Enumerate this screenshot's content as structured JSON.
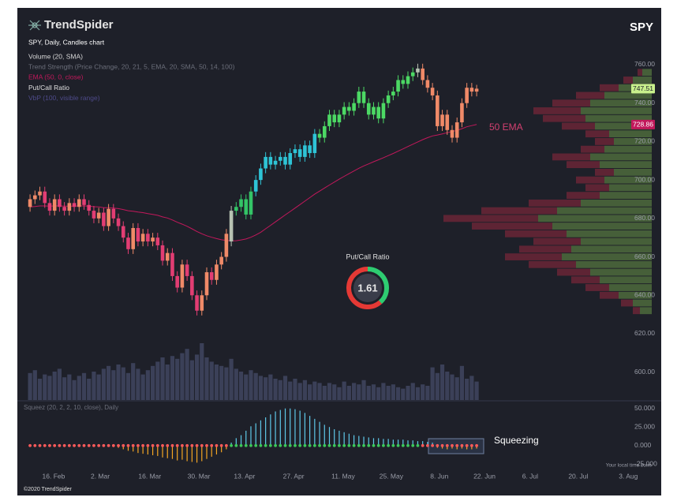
{
  "chart_data": {
    "type": "candlestick",
    "logo": "TrendSpider",
    "title": "SPY",
    "subtitle": "SPY, Daily, Candles chart",
    "indicators": [
      {
        "name": "Volume (20, SMA)",
        "color": "#d8d8d8"
      },
      {
        "name": "Trend Strength (Price Change, 20, 21, 5, EMA, 20, SMA, 50, 14, 100)",
        "color": "#6b6e7a"
      },
      {
        "name": "EMA (50, 0, close)",
        "color": "#c2185b"
      },
      {
        "name": "Put/Call Ratio",
        "color": "#e0e0e0"
      },
      {
        "name": "VbP (100, visible range)",
        "color": "#4e4a8a"
      }
    ],
    "x": [
      0,
      1,
      2,
      3,
      4,
      5,
      6,
      7,
      8,
      9,
      10,
      11,
      12,
      13,
      14,
      15,
      16,
      17,
      18,
      19,
      20,
      21,
      22,
      23,
      24,
      25,
      26,
      27,
      28,
      29,
      30,
      31,
      32,
      33,
      34,
      35,
      36,
      37,
      38,
      39,
      40,
      41,
      42,
      43,
      44,
      45,
      46,
      47,
      48,
      49,
      50,
      51,
      52,
      53,
      54,
      55,
      56,
      57,
      58,
      59,
      60,
      61,
      62,
      63,
      64,
      65,
      66,
      67,
      68,
      69,
      70,
      71,
      72,
      73,
      74,
      75,
      76,
      77,
      78,
      79,
      80,
      81,
      82,
      83,
      84,
      85,
      86,
      87,
      88,
      89,
      90,
      91
    ],
    "open": [
      686,
      690,
      692,
      694,
      688,
      684,
      690,
      686,
      684,
      688,
      686,
      690,
      687,
      684,
      680,
      683,
      676,
      685,
      680,
      676,
      670,
      664,
      675,
      668,
      672,
      668,
      670,
      666,
      658,
      662,
      650,
      644,
      656,
      650,
      640,
      632,
      640,
      652,
      648,
      656,
      660,
      668,
      684,
      686,
      690,
      682,
      694,
      700,
      706,
      712,
      708,
      710,
      712,
      708,
      714,
      716,
      712,
      718,
      714,
      724,
      722,
      728,
      734,
      730,
      734,
      738,
      736,
      740,
      746,
      740,
      734,
      738,
      732,
      740,
      744,
      746,
      752,
      750,
      754,
      756,
      758,
      752,
      748,
      744,
      728,
      734,
      726,
      722,
      730,
      740,
      748,
      746
    ],
    "high": [
      692.5,
      694.5,
      696.5,
      696.5,
      690.5,
      692.5,
      692.5,
      688.5,
      690.5,
      690.5,
      692.5,
      692.5,
      689.5,
      686.5,
      685.5,
      685.5,
      687.5,
      687.5,
      682.5,
      678.5,
      672.5,
      677.5,
      677.5,
      674.5,
      674.5,
      672.5,
      672.5,
      668.5,
      664.5,
      664.5,
      652.5,
      658.5,
      658.5,
      652.5,
      642.5,
      642.5,
      654.5,
      654.5,
      658.5,
      662.5,
      674.5,
      686.5,
      688.5,
      692.5,
      692.5,
      696.5,
      702.5,
      708.5,
      714.5,
      714.5,
      712.5,
      714.5,
      714.5,
      716.5,
      718.5,
      718.5,
      720.5,
      720.5,
      726.5,
      726.5,
      730.5,
      736.5,
      736.5,
      736.5,
      740.5,
      740.5,
      742.5,
      748.5,
      748.5,
      742.5,
      740.5,
      740.5,
      742.5,
      746.5,
      748.5,
      754.5,
      754.5,
      756.5,
      758.5,
      760.5,
      760.5,
      754.5,
      750.5,
      746.5,
      736.5,
      736.5,
      728.5,
      732.5,
      742.5,
      750.5,
      750.5,
      749.5
    ],
    "low": [
      683.5,
      687.5,
      689.5,
      685.5,
      681.5,
      681.5,
      683.5,
      681.5,
      681.5,
      683.5,
      683.5,
      684.5,
      681.5,
      677.5,
      677.5,
      673.5,
      673.5,
      677.5,
      673.5,
      667.5,
      661.5,
      661.5,
      665.5,
      665.5,
      665.5,
      665.5,
      663.5,
      655.5,
      655.5,
      647.5,
      641.5,
      641.5,
      647.5,
      637.5,
      629.5,
      629.5,
      637.5,
      645.5,
      645.5,
      653.5,
      657.5,
      665.5,
      681.5,
      683.5,
      679.5,
      679.5,
      691.5,
      697.5,
      703.5,
      705.5,
      705.5,
      707.5,
      705.5,
      705.5,
      711.5,
      709.5,
      709.5,
      711.5,
      711.5,
      719.5,
      719.5,
      725.5,
      727.5,
      727.5,
      731.5,
      733.5,
      733.5,
      737.5,
      737.5,
      731.5,
      731.5,
      729.5,
      729.5,
      737.5,
      741.5,
      743.5,
      747.5,
      747.5,
      751.5,
      753.5,
      749.5,
      745.5,
      741.5,
      725.5,
      725.5,
      723.5,
      719.5,
      719.5,
      727.5,
      737.5,
      743.5,
      743.5
    ],
    "close": [
      690,
      692,
      694,
      688,
      684,
      690,
      686,
      684,
      688,
      686,
      690,
      687,
      684,
      680,
      683,
      676,
      685,
      680,
      676,
      670,
      664,
      675,
      668,
      672,
      668,
      670,
      666,
      658,
      662,
      650,
      644,
      656,
      650,
      640,
      632,
      640,
      652,
      648,
      656,
      660,
      672,
      684,
      686,
      690,
      682,
      694,
      700,
      706,
      712,
      708,
      710,
      712,
      708,
      714,
      716,
      712,
      718,
      714,
      724,
      722,
      728,
      734,
      730,
      734,
      738,
      736,
      740,
      746,
      740,
      734,
      738,
      732,
      740,
      744,
      746,
      752,
      750,
      754,
      756,
      758,
      752,
      748,
      744,
      728,
      734,
      726,
      722,
      730,
      740,
      748,
      746,
      747.51
    ],
    "colors": [
      "#f08a68",
      "#f08a68",
      "#f08a68",
      "#e23d73",
      "#e23d73",
      "#f08a68",
      "#e23d73",
      "#e23d73",
      "#f08a68",
      "#e23d73",
      "#f08a68",
      "#e23d73",
      "#e23d73",
      "#e23d73",
      "#f08a68",
      "#e23d73",
      "#f08a68",
      "#e23d73",
      "#e23d73",
      "#e23d73",
      "#e23d73",
      "#f08a68",
      "#e23d73",
      "#f08a68",
      "#e23d73",
      "#f08a68",
      "#e23d73",
      "#e23d73",
      "#f08a68",
      "#e23d73",
      "#e23d73",
      "#f08a68",
      "#e23d73",
      "#e23d73",
      "#e23d73",
      "#f08a68",
      "#f08a68",
      "#e23d73",
      "#f08a68",
      "#f08a68",
      "#f08a68",
      "#b7c2b2",
      "#33c466",
      "#33c466",
      "#33c466",
      "#33c466",
      "#2ec4d6",
      "#2ec4d6",
      "#2ec4d6",
      "#2ec4d6",
      "#2ec4d6",
      "#2ec4d6",
      "#2ec4d6",
      "#2ec4d6",
      "#2ec4d6",
      "#2ec4d6",
      "#2ec4d6",
      "#2ec4d6",
      "#2ec4d6",
      "#4cd964",
      "#4cd964",
      "#4cd964",
      "#4cd964",
      "#4cd964",
      "#4cd964",
      "#4cd964",
      "#4cd964",
      "#4cd964",
      "#4cd964",
      "#4cd964",
      "#4cd964",
      "#4cd964",
      "#4cd964",
      "#4cd964",
      "#4cd964",
      "#4cd964",
      "#4cd964",
      "#4cd964",
      "#4cd964",
      "#b7c2b2",
      "#f08a68",
      "#f08a68",
      "#f08a68",
      "#f08a68",
      "#f08a68",
      "#f08a68",
      "#f08a68",
      "#f08a68",
      "#f08a68",
      "#f08a68",
      "#f08a68",
      "#f08a68"
    ],
    "xlim": [
      -1.3,
      127
    ],
    "xticks": [
      {
        "value": 4.8,
        "label": "16. Feb"
      },
      {
        "value": 14.3,
        "label": "2. Mar"
      },
      {
        "value": 24.4,
        "label": "16. Mar"
      },
      {
        "value": 34.4,
        "label": "30. Mar"
      },
      {
        "value": 43.7,
        "label": "13. Apr"
      },
      {
        "value": 53.7,
        "label": "27. Apr"
      },
      {
        "value": 63.8,
        "label": "11. May"
      },
      {
        "value": 73.6,
        "label": "25. May"
      },
      {
        "value": 83.4,
        "label": "8. Jun"
      },
      {
        "value": 92.6,
        "label": "22. Jun"
      },
      {
        "value": 101.9,
        "label": "6. Jul"
      },
      {
        "value": 111.7,
        "label": "20. Jul"
      },
      {
        "value": 121.9,
        "label": "3. Aug"
      }
    ],
    "ylim": [
      585.5,
      787.5
    ],
    "yticks": [
      {
        "value": 600,
        "label": "600.00"
      },
      {
        "value": 620,
        "label": "620.00"
      },
      {
        "value": 640,
        "label": "640.00"
      },
      {
        "value": 660,
        "label": "660.00"
      },
      {
        "value": 680,
        "label": "680.00"
      },
      {
        "value": 700,
        "label": "700.00"
      },
      {
        "value": 720,
        "label": "720.00"
      },
      {
        "value": 740,
        "label": "740.00"
      },
      {
        "value": 760,
        "label": "760.00"
      }
    ],
    "last_price_color": "#c8f08c",
    "ema": {
      "name": "50 EMA",
      "color": "#c2185b",
      "values": [
        686,
        686.2,
        686.5,
        686.5,
        686.4,
        686.5,
        686.5,
        686.4,
        686.4,
        686.4,
        686.5,
        686.5,
        686.4,
        686.1,
        686,
        685.6,
        685.6,
        685.4,
        685.1,
        684.6,
        684,
        683.7,
        683.3,
        683,
        682.5,
        682.1,
        681.6,
        680.8,
        680.2,
        679.2,
        678,
        677,
        675.9,
        674.6,
        673.2,
        672,
        671,
        670.2,
        669.5,
        668.9,
        668.5,
        668.3,
        668.4,
        668.8,
        669.3,
        670.2,
        671.4,
        672.8,
        674.6,
        676.4,
        678.2,
        680,
        681.8,
        683.6,
        685.4,
        687.2,
        689,
        690.8,
        692.6,
        694.2,
        695.8,
        697.4,
        698.9,
        700.4,
        701.9,
        703.3,
        704.7,
        706.1,
        707.3,
        708.4,
        709.5,
        710.5,
        711.6,
        712.7,
        713.8,
        715,
        716.2,
        717.4,
        718.6,
        719.8,
        721,
        722,
        722.9,
        723.4,
        724,
        724.6,
        725.2,
        725.8,
        726.7,
        727.7,
        728.3,
        728.86
      ]
    },
    "volume": {
      "color": "#3b4058",
      "lim": [
        0,
        100
      ],
      "values": [
        38,
        42,
        30,
        36,
        34,
        40,
        44,
        32,
        36,
        28,
        34,
        38,
        30,
        40,
        36,
        44,
        48,
        42,
        50,
        46,
        38,
        52,
        44,
        36,
        42,
        48,
        54,
        60,
        50,
        62,
        58,
        66,
        72,
        56,
        64,
        80,
        60,
        54,
        50,
        48,
        46,
        58,
        44,
        40,
        36,
        42,
        38,
        34,
        32,
        36,
        30,
        28,
        34,
        26,
        30,
        24,
        28,
        22,
        26,
        24,
        20,
        24,
        22,
        18,
        26,
        20,
        24,
        22,
        28,
        20,
        22,
        18,
        24,
        20,
        22,
        18,
        16,
        20,
        24,
        18,
        22,
        20,
        46,
        38,
        50,
        40,
        36,
        32,
        48,
        30,
        34,
        26
      ]
    },
    "volume_profile": {
      "up_color": "#4d6b3c",
      "down_color": "#6a2636",
      "lim": [
        0,
        100
      ],
      "levels": [
        632,
        636,
        640,
        644,
        648,
        652,
        656,
        660,
        664,
        668,
        672,
        676,
        680,
        684,
        688,
        692,
        696,
        700,
        704,
        708,
        712,
        716,
        720,
        724,
        728,
        732,
        736,
        740,
        744,
        748,
        752,
        756
      ],
      "up": [
        5,
        8,
        14,
        18,
        22,
        26,
        32,
        38,
        34,
        30,
        36,
        42,
        48,
        40,
        30,
        22,
        18,
        20,
        16,
        22,
        26,
        20,
        16,
        18,
        24,
        28,
        30,
        26,
        20,
        14,
        8,
        4
      ],
      "down": [
        3,
        5,
        8,
        10,
        12,
        14,
        20,
        24,
        22,
        20,
        26,
        34,
        40,
        32,
        22,
        14,
        10,
        12,
        8,
        14,
        16,
        10,
        8,
        10,
        14,
        18,
        20,
        16,
        12,
        8,
        4,
        2
      ]
    },
    "put_call": {
      "title": "Put/Call Ratio",
      "value": 1.61,
      "put_color": "#e53935",
      "call_color": "#2ecc71"
    },
    "squeeze": {
      "name": "Squeez (20, 2, 2, 10, close), Daily",
      "annotation": "Squeezing",
      "pos_color": "#5ec8e8",
      "neg_color": "#f5a623",
      "on_color": "#ff5a5a",
      "off_color": "#3cc85a",
      "ylim": [
        -30,
        55
      ],
      "yticks": [
        {
          "value": 50,
          "label": "50.000"
        },
        {
          "value": 25,
          "label": "25.000"
        },
        {
          "value": 0,
          "label": "0.000"
        },
        {
          "value": -25,
          "label": "-25.000"
        }
      ],
      "values": [
        0.5,
        0.8,
        1,
        0.6,
        0.4,
        0.6,
        0.5,
        0.3,
        0.4,
        0.2,
        0.3,
        0.4,
        0.2,
        -0.5,
        -0.8,
        -1.5,
        -1,
        -2,
        -3,
        -5,
        -7,
        -8,
        -10,
        -11,
        -12,
        -13,
        -14,
        -16,
        -17,
        -18,
        -20,
        -19,
        -21,
        -22,
        -23,
        -21,
        -18,
        -15,
        -12,
        -9,
        -5,
        4,
        10,
        14,
        20,
        26,
        30,
        34,
        38,
        42,
        46,
        48,
        50,
        50,
        49,
        47,
        44,
        40,
        36,
        32,
        28,
        25,
        22,
        20,
        18,
        16,
        14,
        13,
        12,
        11,
        10,
        10,
        9,
        9,
        8,
        8,
        8,
        7,
        7,
        6,
        6,
        5,
        4,
        -3,
        -4,
        -5,
        -4,
        -5,
        -4,
        -5,
        -5,
        -4
      ],
      "on": [
        true,
        true,
        true,
        true,
        true,
        true,
        true,
        true,
        true,
        true,
        true,
        true,
        true,
        true,
        true,
        true,
        true,
        true,
        true,
        true,
        true,
        true,
        true,
        true,
        true,
        true,
        true,
        true,
        true,
        true,
        true,
        true,
        true,
        true,
        true,
        true,
        true,
        true,
        true,
        true,
        true,
        false,
        false,
        false,
        false,
        false,
        false,
        false,
        false,
        false,
        false,
        false,
        false,
        false,
        false,
        false,
        false,
        false,
        false,
        false,
        false,
        false,
        false,
        false,
        false,
        false,
        false,
        false,
        false,
        false,
        false,
        false,
        false,
        false,
        false,
        false,
        false,
        false,
        false,
        false,
        true,
        true,
        true,
        true,
        true,
        true,
        true,
        true,
        true,
        true,
        true,
        true
      ]
    },
    "time_zone": "Your local time zone",
    "copyright": "©2020 TrendSpider"
  }
}
